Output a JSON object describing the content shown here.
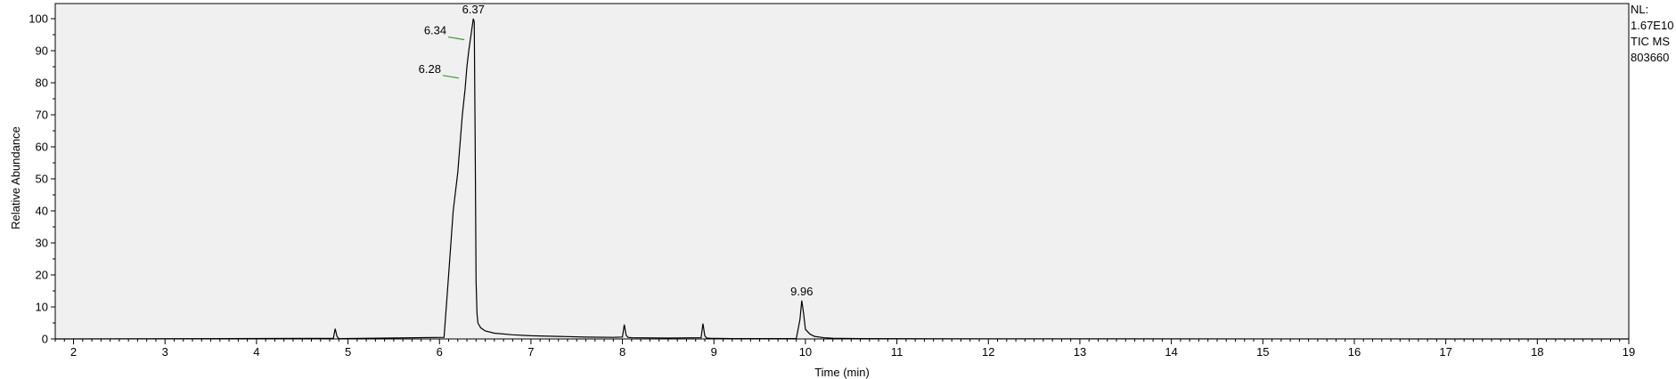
{
  "side_info": {
    "nl_label": "NL:",
    "nl_value": "1.67E10",
    "trace": "TIC MS",
    "file_id": "803660"
  },
  "chart_data": {
    "type": "line",
    "title": "",
    "xlabel": "Time (min)",
    "ylabel": "Relative Abundance",
    "xlim": [
      1.8,
      19.0
    ],
    "ylim": [
      0,
      100
    ],
    "x_ticks": [
      2,
      3,
      4,
      5,
      6,
      7,
      8,
      9,
      10,
      11,
      12,
      13,
      14,
      15,
      16,
      17,
      18,
      19
    ],
    "y_ticks": [
      0,
      10,
      20,
      30,
      40,
      50,
      60,
      70,
      80,
      90,
      100
    ],
    "grid": false,
    "plot_background": "#f0f0f0",
    "line_color": "#000000",
    "annotation_tick_color": "#3a9a3a",
    "series": [
      {
        "x": [
          1.8,
          4.84,
          4.86,
          4.88,
          4.9,
          6.05,
          6.1,
          6.15,
          6.2,
          6.25,
          6.28,
          6.3,
          6.32,
          6.34,
          6.36,
          6.37,
          6.38,
          6.39,
          6.4,
          6.41,
          6.42,
          6.45,
          6.5,
          6.6,
          6.8,
          7.0,
          7.3,
          7.6,
          7.9,
          8.0,
          8.02,
          8.04,
          8.06,
          8.1,
          8.5,
          8.86,
          8.88,
          8.9,
          8.92,
          8.96,
          9.2,
          9.9,
          9.94,
          9.96,
          9.98,
          10.0,
          10.05,
          10.1,
          10.2,
          10.3,
          10.6,
          12.0,
          15.0,
          19.0
        ],
        "y": [
          0,
          0.2,
          3.2,
          0.8,
          0.1,
          0.5,
          20,
          40,
          52,
          70,
          78,
          85,
          90,
          94,
          98,
          100,
          99,
          62,
          18,
          8,
          5,
          3.5,
          2.5,
          1.8,
          1.3,
          1.0,
          0.8,
          0.6,
          0.5,
          0.6,
          4.5,
          1.2,
          0.5,
          0.4,
          0.3,
          0.4,
          4.8,
          1.0,
          0.3,
          0.2,
          0.1,
          0.1,
          6,
          12,
          8,
          3,
          1.5,
          0.8,
          0.4,
          0.2,
          0.1,
          0.05,
          0.02,
          0
        ]
      }
    ],
    "peak_labels": [
      {
        "x": 6.37,
        "y": 100,
        "text": "6.37"
      },
      {
        "x": 6.34,
        "y": 94,
        "text": "6.34",
        "side": "left"
      },
      {
        "x": 6.28,
        "y": 82,
        "text": "6.28",
        "side": "left"
      },
      {
        "x": 9.96,
        "y": 12,
        "text": "9.96"
      }
    ]
  }
}
